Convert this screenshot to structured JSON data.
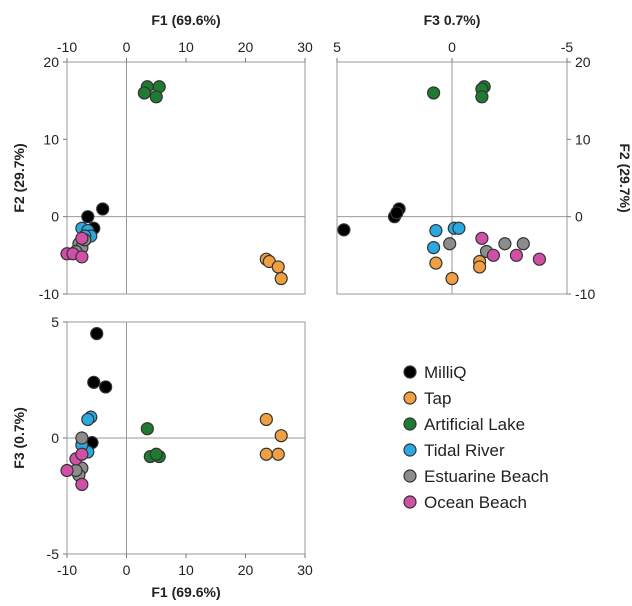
{
  "chart_data": [
    {
      "type": "scatter",
      "panel": "F1 vs F2",
      "xlabel": "F1 (69.6%)",
      "ylabel": "F2 (29.7%)",
      "xlim": [
        -10,
        30
      ],
      "ylim": [
        -10,
        20
      ],
      "xticks": [
        "-10",
        "0",
        "10",
        "20",
        "30"
      ],
      "yticks": [
        "20",
        "10",
        "0",
        "-10"
      ],
      "x_axis_position": "top",
      "y_axis_position": "left",
      "series": [
        {
          "name": "MilliQ",
          "points": [
            [
              -6.5,
              0
            ],
            [
              -4,
              1
            ],
            [
              -5.5,
              -1.5
            ],
            [
              -7,
              -3
            ]
          ]
        },
        {
          "name": "Tap",
          "points": [
            [
              23.5,
              -5.5
            ],
            [
              24,
              -5.8
            ],
            [
              25.5,
              -6.5
            ],
            [
              26,
              -8
            ]
          ]
        },
        {
          "name": "Artificial Lake",
          "points": [
            [
              3.5,
              16.8
            ],
            [
              5.5,
              16.8
            ],
            [
              3,
              16
            ],
            [
              5,
              15.5
            ]
          ]
        },
        {
          "name": "Tidal River",
          "points": [
            [
              -7.5,
              -1.5
            ],
            [
              -6.5,
              -1.8
            ],
            [
              -6,
              -2.5
            ],
            [
              -7,
              -2.5
            ]
          ]
        },
        {
          "name": "Estuarine Beach",
          "points": [
            [
              -8,
              -3.5
            ],
            [
              -7.5,
              -4
            ],
            [
              -7,
              -3
            ],
            [
              -8.5,
              -4.5
            ]
          ]
        },
        {
          "name": "Ocean Beach",
          "points": [
            [
              -10,
              -4.8
            ],
            [
              -9,
              -4.8
            ],
            [
              -7.5,
              -5.2
            ],
            [
              -7.5,
              -2.8
            ]
          ]
        }
      ]
    },
    {
      "type": "scatter",
      "panel": "F3 vs F2",
      "xlabel": "F3 0.7%)",
      "ylabel": "F2 (29.7%)",
      "xlim": [
        5,
        -5
      ],
      "ylim": [
        -10,
        20
      ],
      "xticks": [
        "5",
        "0",
        "-5"
      ],
      "yticks": [
        "20",
        "10",
        "0",
        "-10"
      ],
      "x_axis_position": "top",
      "y_axis_position": "right",
      "series": [
        {
          "name": "MilliQ",
          "points": [
            [
              4.7,
              -1.7
            ],
            [
              2.3,
              1
            ],
            [
              2.5,
              0
            ],
            [
              2.4,
              0.5
            ]
          ]
        },
        {
          "name": "Tap",
          "points": [
            [
              0.7,
              -6
            ],
            [
              0,
              -8
            ],
            [
              -1.2,
              -5.8
            ],
            [
              -1.2,
              -6.5
            ]
          ]
        },
        {
          "name": "Artificial Lake",
          "points": [
            [
              0.8,
              16
            ],
            [
              -1.4,
              16.8
            ],
            [
              -1.3,
              16.5
            ],
            [
              -1.3,
              15.5
            ]
          ]
        },
        {
          "name": "Tidal River",
          "points": [
            [
              0.7,
              -1.8
            ],
            [
              0.8,
              -4
            ],
            [
              -0.1,
              -1.5
            ],
            [
              -0.3,
              -1.5
            ]
          ]
        },
        {
          "name": "Estuarine Beach",
          "points": [
            [
              0.1,
              -3.5
            ],
            [
              -2.3,
              -3.5
            ],
            [
              -3.1,
              -3.5
            ],
            [
              -1.5,
              -4.5
            ]
          ]
        },
        {
          "name": "Ocean Beach",
          "points": [
            [
              -1.3,
              -2.8
            ],
            [
              -1.8,
              -5
            ],
            [
              -2.8,
              -5
            ],
            [
              -3.8,
              -5.5
            ]
          ]
        }
      ]
    },
    {
      "type": "scatter",
      "panel": "F1 vs F3",
      "xlabel": "F1 (69.6%)",
      "ylabel": "F3 (0.7%)",
      "xlim": [
        -10,
        30
      ],
      "ylim": [
        -5,
        5
      ],
      "xticks": [
        "-10",
        "0",
        "10",
        "20",
        "30"
      ],
      "yticks": [
        "5",
        "0",
        "-5"
      ],
      "x_axis_position": "bottom",
      "y_axis_position": "left",
      "series": [
        {
          "name": "MilliQ",
          "points": [
            [
              -5,
              4.5
            ],
            [
              -5.5,
              2.4
            ],
            [
              -3.5,
              2.2
            ],
            [
              -5.8,
              -0.2
            ]
          ]
        },
        {
          "name": "Tap",
          "points": [
            [
              23.5,
              0.8
            ],
            [
              26,
              0.1
            ],
            [
              23.5,
              -0.7
            ],
            [
              25.5,
              -0.7
            ]
          ]
        },
        {
          "name": "Artificial Lake",
          "points": [
            [
              3.5,
              0.4
            ],
            [
              4,
              -0.8
            ],
            [
              5.5,
              -0.8
            ],
            [
              5,
              -0.7
            ]
          ]
        },
        {
          "name": "Tidal River",
          "points": [
            [
              -6,
              0.9
            ],
            [
              -6.5,
              0.8
            ],
            [
              -6.5,
              -0.6
            ],
            [
              -7.5,
              -0.3
            ]
          ]
        },
        {
          "name": "Estuarine Beach",
          "points": [
            [
              -7.5,
              0
            ],
            [
              -7.5,
              -1.3
            ],
            [
              -8,
              -1.6
            ],
            [
              -8.5,
              -1.4
            ]
          ]
        },
        {
          "name": "Ocean Beach",
          "points": [
            [
              -8.5,
              -0.9
            ],
            [
              -7.5,
              -0.7
            ],
            [
              -10,
              -1.4
            ],
            [
              -7.5,
              -2
            ]
          ]
        }
      ]
    }
  ],
  "legend": [
    {
      "name": "MilliQ",
      "color": "#000000"
    },
    {
      "name": "Tap",
      "color": "#f0a040"
    },
    {
      "name": "Artificial Lake",
      "color": "#1f7a32"
    },
    {
      "name": "Tidal River",
      "color": "#2aa9e0"
    },
    {
      "name": "Estuarine Beach",
      "color": "#8c8c8c"
    },
    {
      "name": "Ocean Beach",
      "color": "#d24fa8"
    }
  ],
  "marker_edge_color": "#333333"
}
